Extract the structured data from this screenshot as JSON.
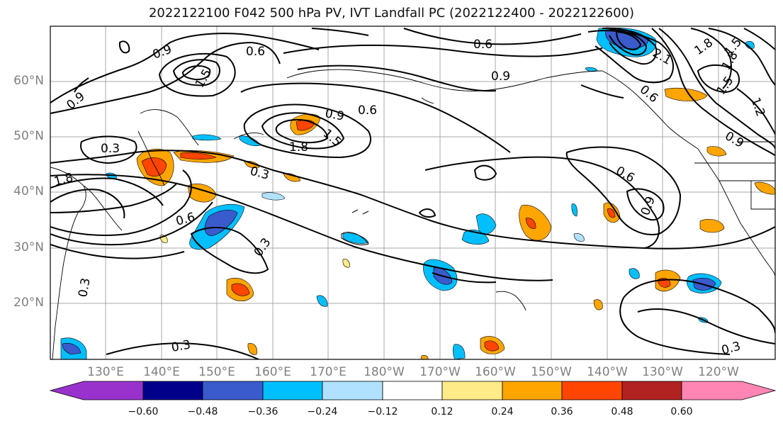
{
  "title": "2022122100 F042 500 hPa PV, IVT Landfall PC (2022122400 - 2022122600)",
  "lat_ticks": [
    "60°N",
    "50°N",
    "40°N",
    "30°N",
    "20°N"
  ],
  "lon_ticks": [
    "130°E",
    "140°E",
    "150°E",
    "160°E",
    "170°E",
    "180°W",
    "170°W",
    "160°W",
    "150°W",
    "140°W",
    "130°W",
    "120°W"
  ],
  "colorbar": {
    "ticks": [
      "−0.60",
      "−0.48",
      "−0.36",
      "−0.24",
      "−0.12",
      "0.12",
      "0.24",
      "0.36",
      "0.48",
      "0.60"
    ],
    "colors": [
      "#9932cc",
      "#00008b",
      "#3a5bcc",
      "#00bfff",
      "#b0e2ff",
      "#ffffff",
      "#ffeb87",
      "#ffa500",
      "#ff4500",
      "#b22222",
      "#ff86b4"
    ]
  },
  "contour_labels": [
    "0.9",
    "0.6",
    "1.5",
    "0.6",
    "0.9",
    "0.6",
    "0.9",
    "1.5",
    "1.8",
    "1.8",
    "0.3",
    "0.3",
    "0.6",
    "0.3",
    "0.6",
    "0.9",
    "0.3",
    "0.3",
    "0.3",
    "1.8",
    "0.9",
    "0.6",
    "1.2",
    "1.5",
    "2.1",
    "1.8",
    "1.5",
    "0.9"
  ]
}
